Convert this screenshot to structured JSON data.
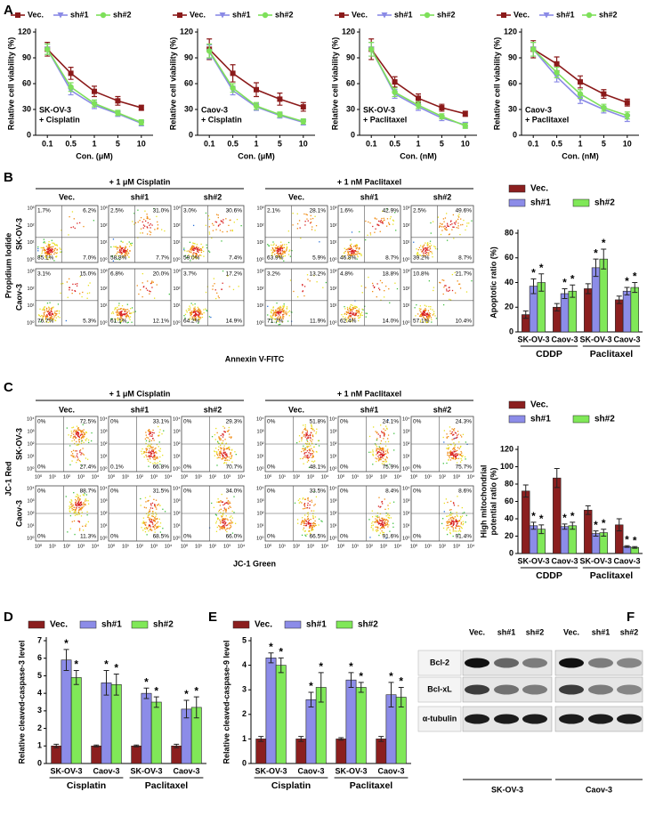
{
  "panels": [
    "A",
    "B",
    "C",
    "D",
    "E",
    "F"
  ],
  "chart_data": [
    {
      "type": "line",
      "annotation": [
        "SK-OV-3",
        "+ Cisplatin"
      ],
      "x_label": "Con. (μM)",
      "y_label": "Relative cell viability (%)",
      "categories": [
        "0.1",
        "0.5",
        "1",
        "5",
        "10"
      ],
      "ylim": [
        0,
        120
      ],
      "yticks": [
        0,
        30,
        60,
        90,
        120
      ],
      "series": [
        {
          "name": "Vec.",
          "color": "#8b1a1a",
          "marker": "square",
          "values": [
            100,
            72,
            51,
            40,
            32
          ],
          "errors": [
            8,
            7,
            6,
            5,
            3
          ]
        },
        {
          "name": "sh#1",
          "color": "#8a8ae6",
          "marker": "triangle-down",
          "values": [
            100,
            52,
            35,
            25,
            14
          ],
          "errors": [
            6,
            5,
            4,
            3,
            3
          ]
        },
        {
          "name": "sh#2",
          "color": "#7ee05a",
          "marker": "circle",
          "values": [
            100,
            56,
            37,
            26,
            15
          ],
          "errors": [
            6,
            5,
            4,
            3,
            3
          ]
        }
      ]
    },
    {
      "type": "line",
      "annotation": [
        "Caov-3",
        "+ Cisplatin"
      ],
      "x_label": "Con. (μM)",
      "y_label": "Relative cell viability (%)",
      "categories": [
        "0.1",
        "0.5",
        "1",
        "5",
        "10"
      ],
      "ylim": [
        0,
        120
      ],
      "yticks": [
        0,
        30,
        60,
        90,
        120
      ],
      "series": [
        {
          "name": "Vec.",
          "color": "#8b1a1a",
          "marker": "square",
          "values": [
            100,
            72,
            53,
            42,
            33
          ],
          "errors": [
            12,
            10,
            8,
            7,
            5
          ]
        },
        {
          "name": "sh#1",
          "color": "#8a8ae6",
          "marker": "triangle-down",
          "values": [
            97,
            52,
            33,
            23,
            15
          ],
          "errors": [
            8,
            5,
            4,
            3,
            3
          ]
        },
        {
          "name": "sh#2",
          "color": "#7ee05a",
          "marker": "circle",
          "values": [
            98,
            55,
            34,
            24,
            16
          ],
          "errors": [
            8,
            5,
            4,
            3,
            3
          ]
        }
      ]
    },
    {
      "type": "line",
      "annotation": [
        "SK-OV-3",
        "+ Paclitaxel"
      ],
      "x_label": "Con. (nM)",
      "y_label": "Relative cell viability (%)",
      "categories": [
        "0.1",
        "0.5",
        "1",
        "5",
        "10"
      ],
      "ylim": [
        0,
        120
      ],
      "yticks": [
        0,
        30,
        60,
        90,
        120
      ],
      "series": [
        {
          "name": "Vec.",
          "color": "#8b1a1a",
          "marker": "square",
          "values": [
            100,
            62,
            43,
            32,
            25
          ],
          "errors": [
            12,
            6,
            5,
            4,
            3
          ]
        },
        {
          "name": "sh#1",
          "color": "#8a8ae6",
          "marker": "triangle-down",
          "values": [
            100,
            48,
            33,
            20,
            12
          ],
          "errors": [
            8,
            5,
            4,
            3,
            3
          ]
        },
        {
          "name": "sh#2",
          "color": "#7ee05a",
          "marker": "circle",
          "values": [
            100,
            50,
            35,
            22,
            11
          ],
          "errors": [
            8,
            5,
            4,
            3,
            3
          ]
        }
      ]
    },
    {
      "type": "line",
      "annotation": [
        "Caov-3",
        "+ Paclitaxel"
      ],
      "x_label": "Con. (nM)",
      "y_label": "Relative cell viability (%)",
      "categories": [
        "0.1",
        "0.5",
        "1",
        "5",
        "10"
      ],
      "ylim": [
        0,
        120
      ],
      "yticks": [
        0,
        30,
        60,
        90,
        120
      ],
      "series": [
        {
          "name": "Vec.",
          "color": "#8b1a1a",
          "marker": "square",
          "values": [
            100,
            83,
            62,
            48,
            38
          ],
          "errors": [
            10,
            8,
            7,
            5,
            4
          ]
        },
        {
          "name": "sh#1",
          "color": "#8a8ae6",
          "marker": "triangle-down",
          "values": [
            100,
            68,
            42,
            30,
            20
          ],
          "errors": [
            8,
            6,
            5,
            4,
            4
          ]
        },
        {
          "name": "sh#2",
          "color": "#7ee05a",
          "marker": "circle",
          "values": [
            100,
            73,
            48,
            32,
            23
          ],
          "errors": [
            8,
            6,
            5,
            4,
            4
          ]
        }
      ]
    },
    {
      "type": "bar",
      "legend": "stack",
      "y_label": [
        "Apoptotic ratio (%)"
      ],
      "categories": [
        "SK-OV-3",
        "Caov-3",
        "SK-OV-3",
        "Caov-3"
      ],
      "groups": [
        "CDDP",
        "Paclitaxel"
      ],
      "ylim": [
        0,
        80
      ],
      "yticks": [
        0,
        20,
        40,
        60,
        80
      ],
      "series": [
        {
          "name": "Vec.",
          "color": "#8b1f1f",
          "values": [
            14,
            20,
            35,
            26
          ],
          "errors": [
            3,
            3,
            4,
            3
          ]
        },
        {
          "name": "sh#1",
          "color": "#8c8ce8",
          "values": [
            37,
            31,
            52,
            33
          ],
          "errors": [
            6,
            4,
            7,
            3
          ],
          "sig": [
            "*",
            "*",
            "*",
            "*"
          ]
        },
        {
          "name": "sh#2",
          "color": "#80e858",
          "values": [
            40,
            33,
            59,
            36
          ],
          "errors": [
            7,
            5,
            8,
            4
          ],
          "sig": [
            "*",
            "*",
            "*",
            "*"
          ]
        }
      ]
    },
    {
      "type": "bar",
      "legend": "stack",
      "y_label": [
        "High mitochondrial",
        "potential ratio (%)"
      ],
      "categories": [
        "SK-OV-3",
        "Caov-3",
        "SK-OV-3",
        "Caov-3"
      ],
      "groups": [
        "CDDP",
        "Paclitaxel"
      ],
      "ylim": [
        0,
        120
      ],
      "yticks": [
        0,
        20,
        40,
        60,
        80,
        100,
        120
      ],
      "series": [
        {
          "name": "Vec.",
          "color": "#8b1f1f",
          "values": [
            72,
            87,
            50,
            33
          ],
          "errors": [
            7,
            11,
            5,
            7
          ]
        },
        {
          "name": "sh#1",
          "color": "#8c8ce8",
          "values": [
            32,
            31,
            23,
            8
          ],
          "errors": [
            4,
            3,
            3,
            1
          ],
          "sig": [
            "*",
            "*",
            "*",
            "*"
          ]
        },
        {
          "name": "sh#2",
          "color": "#80e858",
          "values": [
            28,
            32,
            24,
            7
          ],
          "errors": [
            5,
            4,
            4,
            1
          ],
          "sig": [
            "*",
            "*",
            "*",
            "*"
          ]
        }
      ]
    },
    {
      "type": "bar",
      "legend": "row",
      "y_label": [
        "Relative cleaved-caspase-3 level"
      ],
      "categories": [
        "SK-OV-3",
        "Caov-3",
        "SK-OV-3",
        "Caov-3"
      ],
      "groups": [
        "Cisplatin",
        "Paclitaxel"
      ],
      "ylim": [
        0,
        7
      ],
      "yticks": [
        0,
        1,
        2,
        3,
        4,
        5,
        6,
        7
      ],
      "series": [
        {
          "name": "Vec.",
          "color": "#8b1f1f",
          "values": [
            1,
            1,
            1,
            1
          ],
          "errors": [
            0.1,
            0.05,
            0.05,
            0.1
          ]
        },
        {
          "name": "sh#1",
          "color": "#8c8ce8",
          "values": [
            5.9,
            4.6,
            4.0,
            3.1
          ],
          "errors": [
            0.6,
            0.7,
            0.3,
            0.5
          ],
          "sig": [
            "*",
            "*",
            "*",
            "*"
          ]
        },
        {
          "name": "sh#2",
          "color": "#80e858",
          "values": [
            4.9,
            4.5,
            3.5,
            3.2
          ],
          "errors": [
            0.4,
            0.6,
            0.3,
            0.6
          ],
          "sig": [
            "*",
            "*",
            "*",
            "*"
          ]
        }
      ]
    },
    {
      "type": "bar",
      "legend": "row",
      "y_label": [
        "Relative cleaved-caspase-9 level"
      ],
      "categories": [
        "SK-OV-3",
        "Caov-3",
        "SK-OV-3",
        "Caov-3"
      ],
      "groups": [
        "Cisplatin",
        "Paclitaxel"
      ],
      "ylim": [
        0,
        5
      ],
      "yticks": [
        0,
        1,
        2,
        3,
        4,
        5
      ],
      "series": [
        {
          "name": "Vec.",
          "color": "#8b1f1f",
          "values": [
            1,
            1,
            1,
            1
          ],
          "errors": [
            0.1,
            0.1,
            0.05,
            0.1
          ]
        },
        {
          "name": "sh#1",
          "color": "#8c8ce8",
          "values": [
            4.3,
            2.6,
            3.4,
            2.8
          ],
          "errors": [
            0.2,
            0.3,
            0.3,
            0.5
          ],
          "sig": [
            "*",
            "*",
            "*",
            "*"
          ]
        },
        {
          "name": "sh#2",
          "color": "#80e858",
          "values": [
            4.0,
            3.1,
            3.1,
            2.7
          ],
          "errors": [
            0.3,
            0.6,
            0.2,
            0.4
          ],
          "sig": [
            "*",
            "*",
            "*",
            "*"
          ]
        }
      ]
    }
  ],
  "flow_b": {
    "headers": [
      "+ 1 μM Cisplatin",
      "+ 1 nM Paclitaxel"
    ],
    "columns": [
      "Vec.",
      "sh#1",
      "sh#2",
      "Vec.",
      "sh#1",
      "sh#2"
    ],
    "y_label": "Propidium Iodide",
    "x_label": "Annexin V-FITC",
    "axis_ticks": [
      "10⁰",
      "10¹",
      "10²",
      "10³"
    ],
    "rows": [
      {
        "name": "SK-OV-3",
        "quadrants": [
          [
            "1.7%",
            "6.2%",
            "85.1%",
            "7.0%"
          ],
          [
            "2.5%",
            "31.0%",
            "58.8%",
            "7.7%"
          ],
          [
            "3.0%",
            "30.6%",
            "59.0%",
            "7.4%"
          ],
          [
            "2.1%",
            "28.1%",
            "63.9%",
            "5.9%"
          ],
          [
            "1.6%",
            "42.9%",
            "46.8%",
            "8.7%"
          ],
          [
            "2.5%",
            "49.6%",
            "39.2%",
            "8.7%"
          ]
        ]
      },
      {
        "name": "Caov-3",
        "quadrants": [
          [
            "3.1%",
            "15.0%",
            "76.7%",
            "5.3%"
          ],
          [
            "6.8%",
            "20.0%",
            "61.1%",
            "12.1%"
          ],
          [
            "3.7%",
            "17.2%",
            "64.2%",
            "14.9%"
          ],
          [
            "3.2%",
            "13.2%",
            "71.7%",
            "11.9%"
          ],
          [
            "4.8%",
            "18.8%",
            "62.4%",
            "14.0%"
          ],
          [
            "10.8%",
            "21.7%",
            "57.1%",
            "10.4%"
          ]
        ]
      }
    ]
  },
  "flow_c": {
    "headers": [
      "+ 1 μM Cisplatin",
      "+ 1 nM Paclitaxel"
    ],
    "columns": [
      "Vec.",
      "sh#1",
      "sh#2",
      "Vec.",
      "sh#1",
      "sh#2"
    ],
    "y_label": "JC-1 Red",
    "x_label": "JC-1 Green",
    "axis_ticks": [
      "10⁰",
      "10¹",
      "10²",
      "10³",
      "10⁴"
    ],
    "rows": [
      {
        "name": "SK-OV-3",
        "quadrants": [
          [
            "0%",
            "72.5%",
            "0%",
            "27.4%"
          ],
          [
            "0%",
            "33.1%",
            "0.1%",
            "66.8%"
          ],
          [
            "0%",
            "29.3%",
            "0%",
            "70.7%"
          ],
          [
            "0%",
            "51.8%",
            "0%",
            "48.1%"
          ],
          [
            "0%",
            "24.1%",
            "0%",
            "75.9%"
          ],
          [
            "0%",
            "24.3%",
            "0%",
            "75.7%"
          ]
        ]
      },
      {
        "name": "Caov-3",
        "quadrants": [
          [
            "0%",
            "88.7%",
            "0%",
            "11.3%"
          ],
          [
            "0%",
            "31.5%",
            "0%",
            "68.5%"
          ],
          [
            "0%",
            "34.0%",
            "0%",
            "66.0%"
          ],
          [
            "0%",
            "33.5%",
            "0%",
            "66.5%"
          ],
          [
            "0%",
            "8.4%",
            "0%",
            "91.6%"
          ],
          [
            "0%",
            "8.6%",
            "0%",
            "91.4%"
          ]
        ]
      }
    ]
  },
  "blot": {
    "columns": [
      "Vec.",
      "sh#1",
      "sh#2",
      "Vec.",
      "sh#1",
      "sh#2"
    ],
    "rows": [
      "Bcl-2",
      "Bcl-xL",
      "α-tubulin"
    ],
    "cells": [
      "SK-OV-3",
      "Caov-3"
    ]
  }
}
